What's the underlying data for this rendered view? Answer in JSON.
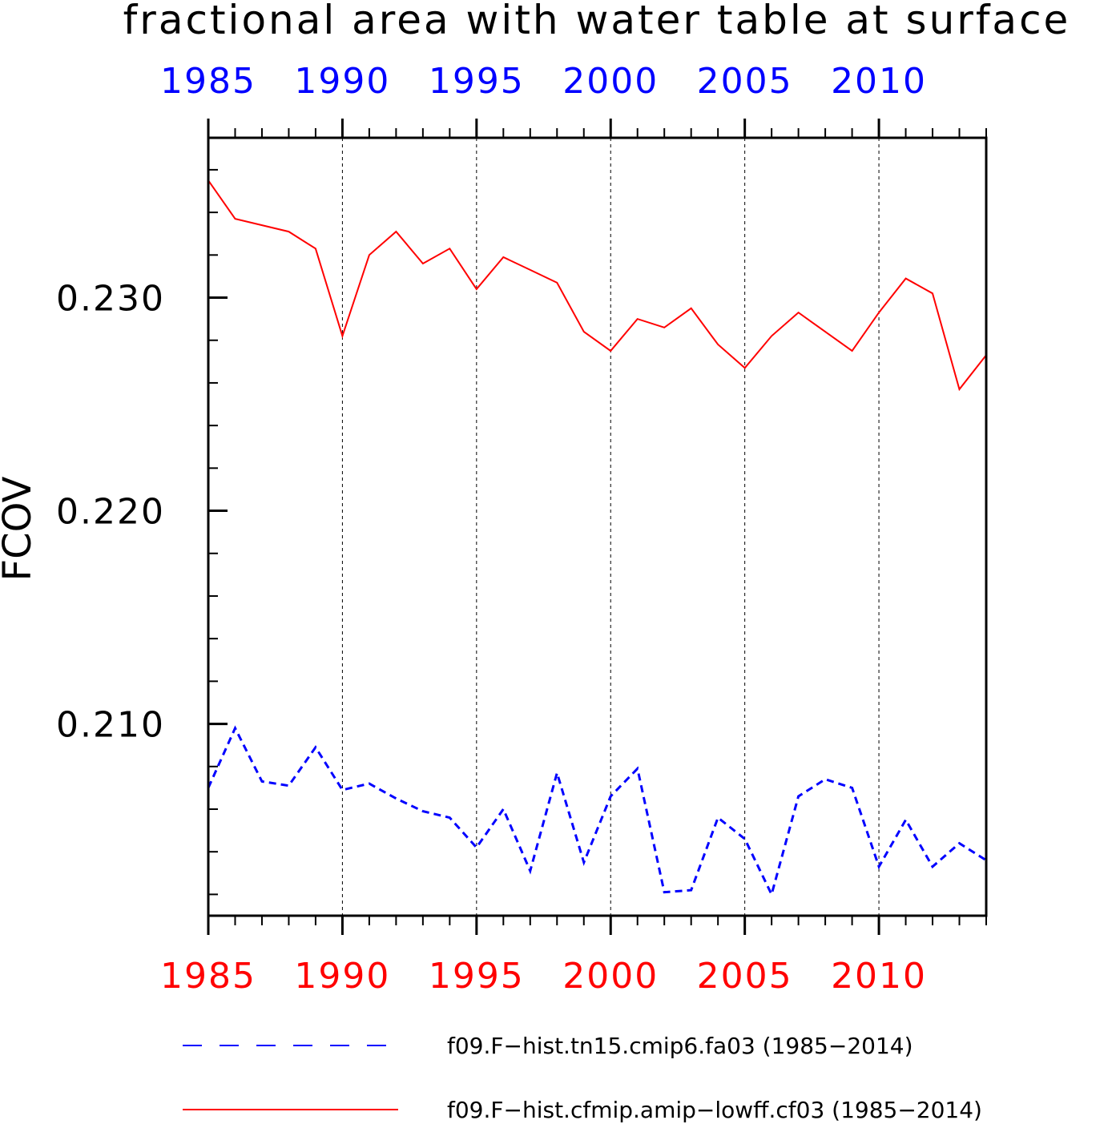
{
  "chart_data": {
    "type": "line",
    "title": "fractional area with water table at surface",
    "ylabel": "FCOV",
    "xlabel": "",
    "xlim": [
      1985,
      2014
    ],
    "ylim": [
      0.201,
      0.2375
    ],
    "x_ticks": [
      1985,
      1990,
      1995,
      2000,
      2005,
      2010
    ],
    "x_tick_labels": [
      "1985",
      "1990",
      "1995",
      "2000",
      "2005",
      "2010"
    ],
    "y_ticks": [
      0.21,
      0.22,
      0.23
    ],
    "y_tick_labels": [
      "0.210",
      "0.220",
      "0.230"
    ],
    "top_axis_color": "#0000ff",
    "bottom_axis_color": "#ff0000",
    "grid": "vertical dashed at major x ticks",
    "legend_position": "bottom",
    "x": [
      1985,
      1986,
      1987,
      1988,
      1989,
      1990,
      1991,
      1992,
      1993,
      1994,
      1995,
      1996,
      1997,
      1998,
      1999,
      2000,
      2001,
      2002,
      2003,
      2004,
      2005,
      2006,
      2007,
      2008,
      2009,
      2010,
      2011,
      2012,
      2013,
      2014
    ],
    "series": [
      {
        "name": "f09.F−hist.tn15.cmip6.fa03 (1985−2014)",
        "color": "#0000ff",
        "style": "dashed",
        "values": [
          0.207,
          0.2098,
          0.2073,
          0.2071,
          0.2089,
          0.2069,
          0.2072,
          0.2065,
          0.2059,
          0.2056,
          0.2042,
          0.206,
          0.2031,
          0.2077,
          0.2035,
          0.2066,
          0.2079,
          0.2021,
          0.2022,
          0.2056,
          0.2046,
          0.202,
          0.2066,
          0.2074,
          0.207,
          0.2033,
          0.2055,
          0.2033,
          0.2044,
          0.2036
        ]
      },
      {
        "name": "f09.F−hist.cfmip.amip−lowff.cf03 (1985−2014)",
        "color": "#ff0000",
        "style": "solid",
        "values": [
          0.2355,
          0.2337,
          0.2334,
          0.2331,
          0.2323,
          0.2282,
          0.232,
          0.2331,
          0.2316,
          0.2323,
          0.2304,
          0.2319,
          0.2313,
          0.2307,
          0.2284,
          0.2275,
          0.229,
          0.2286,
          0.2295,
          0.2278,
          0.2267,
          0.2282,
          0.2293,
          0.2284,
          0.2275,
          0.2293,
          0.2309,
          0.2302,
          0.2257,
          0.2273
        ]
      }
    ]
  }
}
